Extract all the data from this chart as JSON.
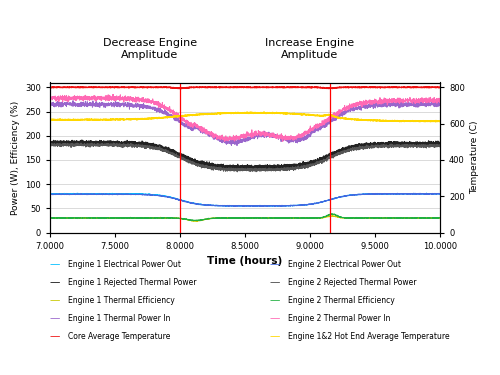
{
  "title_left": "Decrease Engine\nAmplitude",
  "title_right": "Increase Engine\nAmplitude",
  "xlabel": "Time (hours)",
  "ylabel_left": "Power (W), Efficiency (%)",
  "ylabel_right": "Temperature (C)",
  "xlim": [
    7.0,
    10.0
  ],
  "ylim_left": [
    0,
    310
  ],
  "ylim_right": [
    0,
    826.67
  ],
  "xticks": [
    7.0,
    7.5,
    8.0,
    8.5,
    9.0,
    9.5,
    10.0
  ],
  "yticks_left": [
    0,
    50,
    100,
    150,
    200,
    250,
    300
  ],
  "yticks_right": [
    0,
    200,
    400,
    600,
    800
  ],
  "vline1": 8.0,
  "vline2": 9.15,
  "colors": {
    "eng1_elec": "#00bfff",
    "eng2_elec": "#4169e1",
    "eng1_rejected": "#1a1a1a",
    "eng2_rejected": "#606060",
    "eng1_efficiency": "#c8c800",
    "eng2_efficiency": "#20b040",
    "eng1_thermal_in": "#9966cc",
    "eng2_thermal_in": "#ff69b4",
    "core_temp": "#ee1111",
    "hot_end_temp": "#ffd700"
  },
  "legend_labels_left": [
    "Engine 1 Electrical Power Out",
    "Engine 1 Rejected Thermal Power",
    "Engine 1 Thermal Efficiency",
    "Engine 1 Thermal Power In",
    "Core Average Temperature"
  ],
  "legend_labels_right": [
    "Engine 2 Electrical Power Out",
    "Engine 2 Rejected Thermal Power",
    "Engine 2 Thermal Efficiency",
    "Engine 2 Thermal Power In",
    "Engine 1&2 Hot End Average Temperature"
  ]
}
